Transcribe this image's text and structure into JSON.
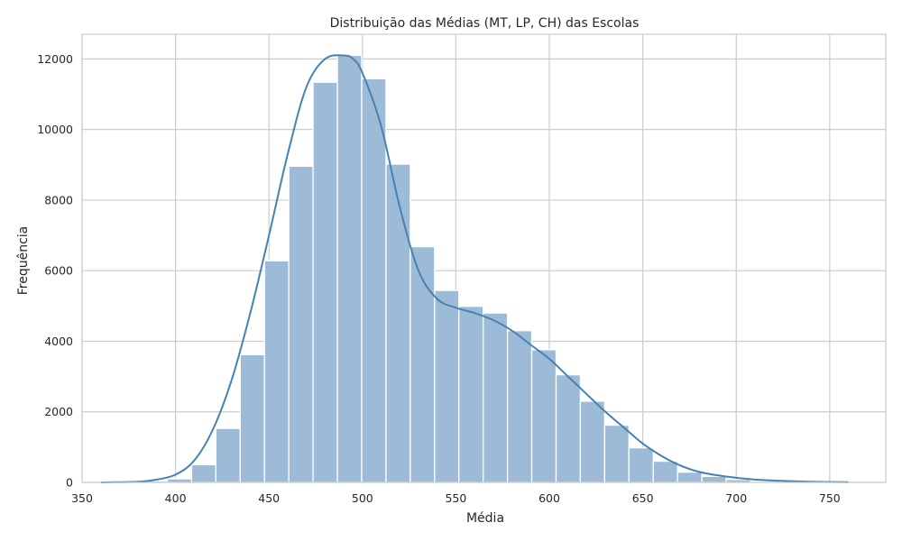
{
  "chart_data": {
    "type": "bar",
    "title": "Distribuição das Médias (MT, LP, CH) das Escolas",
    "xlabel": "Média",
    "ylabel": "Frequência",
    "xlim": [
      350,
      780
    ],
    "ylim": [
      0,
      12700
    ],
    "grid": true,
    "legend": "none",
    "xticks": [
      350,
      400,
      450,
      500,
      550,
      600,
      650,
      700,
      750
    ],
    "yticks": [
      0,
      2000,
      4000,
      6000,
      8000,
      10000,
      12000
    ],
    "bins": {
      "edges": [
        356.6,
        369.6,
        382.6,
        395.6,
        408.6,
        421.6,
        434.6,
        447.6,
        460.6,
        473.6,
        486.6,
        499.6,
        512.6,
        525.6,
        538.6,
        551.6,
        564.6,
        577.6,
        590.6,
        603.6,
        616.6,
        629.6,
        642.6,
        655.6,
        668.6,
        681.6,
        694.6,
        707.6,
        720.6,
        733.6,
        746.6,
        759.6
      ],
      "counts": [
        5,
        15,
        40,
        100,
        500,
        1530,
        3620,
        6280,
        8960,
        11340,
        12100,
        11440,
        9020,
        6680,
        5440,
        4990,
        4800,
        4300,
        3760,
        3050,
        2300,
        1620,
        980,
        600,
        290,
        170,
        80,
        30,
        15,
        10,
        5
      ]
    },
    "kde": {
      "x": [
        360,
        380,
        390,
        400,
        410,
        420,
        430,
        440,
        450,
        460,
        470,
        480,
        490,
        495,
        500,
        510,
        520,
        530,
        540,
        550,
        560,
        570,
        580,
        590,
        600,
        610,
        620,
        630,
        640,
        650,
        660,
        670,
        680,
        690,
        700,
        710,
        720,
        740,
        760
      ],
      "y": [
        0,
        20,
        80,
        220,
        620,
        1500,
        2900,
        4800,
        7000,
        9300,
        11200,
        12000,
        12100,
        12000,
        11600,
        10100,
        7800,
        6000,
        5200,
        4950,
        4800,
        4600,
        4300,
        3900,
        3500,
        3000,
        2500,
        2000,
        1550,
        1100,
        750,
        480,
        300,
        200,
        130,
        80,
        50,
        20,
        5
      ]
    },
    "colors": {
      "bar_fill": "#9dbbd7",
      "bar_edge": "#ffffff",
      "kde_line": "#4682b4",
      "grid": "#cccccc",
      "spine": "#cccccc",
      "text": "#262626"
    }
  }
}
